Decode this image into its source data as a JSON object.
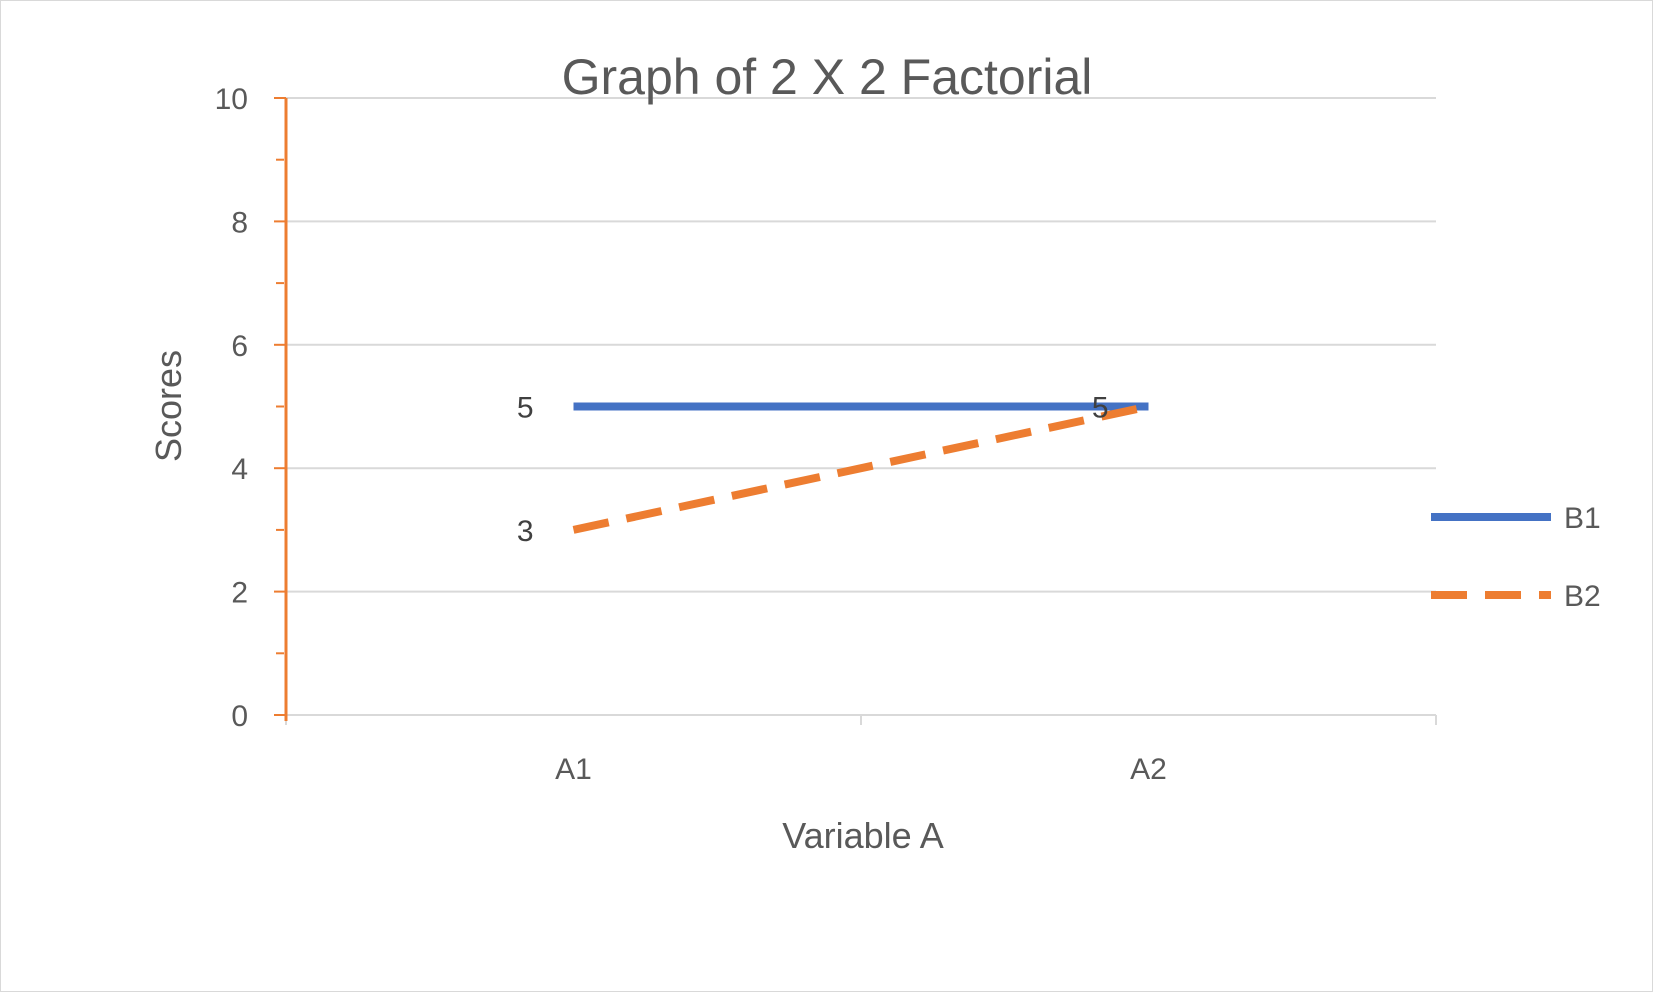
{
  "chart_data": {
    "type": "line",
    "title": "Graph of 2 X 2 Factorial",
    "xlabel": "Variable A",
    "ylabel": "Scores",
    "categories": [
      "A1",
      "A2"
    ],
    "ylim": [
      0,
      10
    ],
    "yticks": [
      0,
      2,
      4,
      6,
      8,
      10
    ],
    "grid": true,
    "legend_position": "right",
    "series": [
      {
        "name": "B1",
        "values": [
          5,
          5
        ],
        "color": "#4472C4",
        "dashed": false,
        "labels": [
          "5",
          "5"
        ]
      },
      {
        "name": "B2",
        "values": [
          3,
          5
        ],
        "color": "#ED7D31",
        "dashed": true,
        "labels": [
          "3",
          ""
        ]
      }
    ],
    "axis_color": "#ED7D31",
    "grid_color": "#d9d9d9"
  }
}
